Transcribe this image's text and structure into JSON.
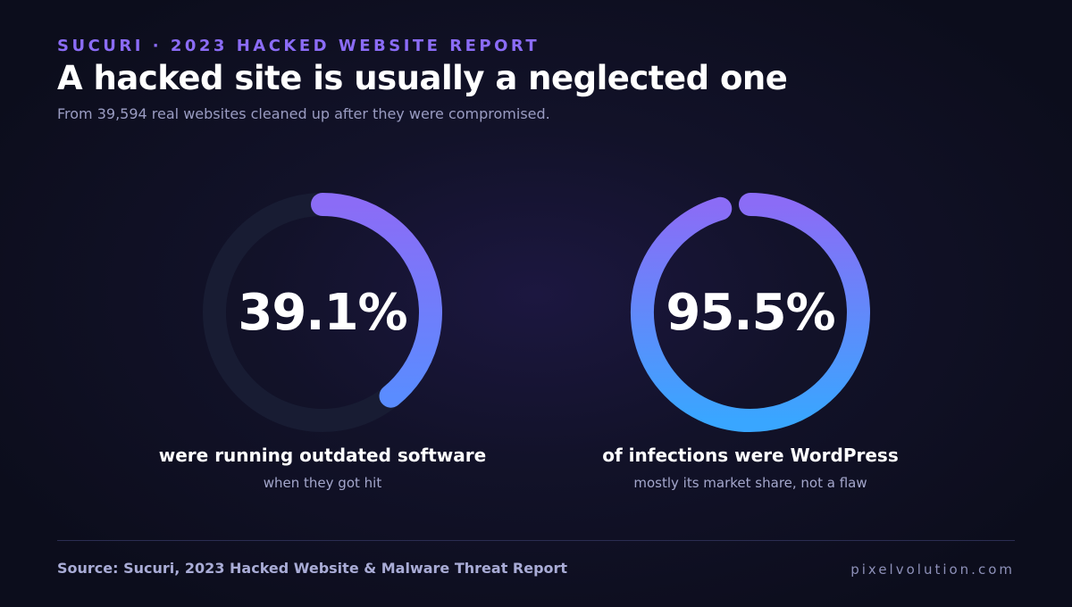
{
  "header": {
    "eyebrow": "SUCURI · 2023 HACKED WEBSITE REPORT",
    "title": "A hacked site is usually a neglected one",
    "subtitle": "From 39,594 real websites cleaned up after they were compromised."
  },
  "chart_data": [
    {
      "type": "donut",
      "value": 39.1,
      "max": 100,
      "label": "39.1%",
      "caption": "were running outdated software",
      "subcaption": "when they got hit",
      "colors": {
        "start": "#8b6cf6",
        "end": "#5a8cff",
        "track": "#181c33"
      },
      "track_visible": true
    },
    {
      "type": "donut",
      "value": 95.5,
      "max": 100,
      "label": "95.5%",
      "caption": "of infections were WordPress",
      "subcaption": "mostly its market share, not a flaw",
      "colors": {
        "start": "#8b6cf6",
        "end": "#39a6ff",
        "track": "#181c33"
      },
      "track_visible": false
    }
  ],
  "footer": {
    "source": "Source: Sucuri, 2023 Hacked Website & Malware Threat Report",
    "brand": "pixelvolution.com"
  }
}
